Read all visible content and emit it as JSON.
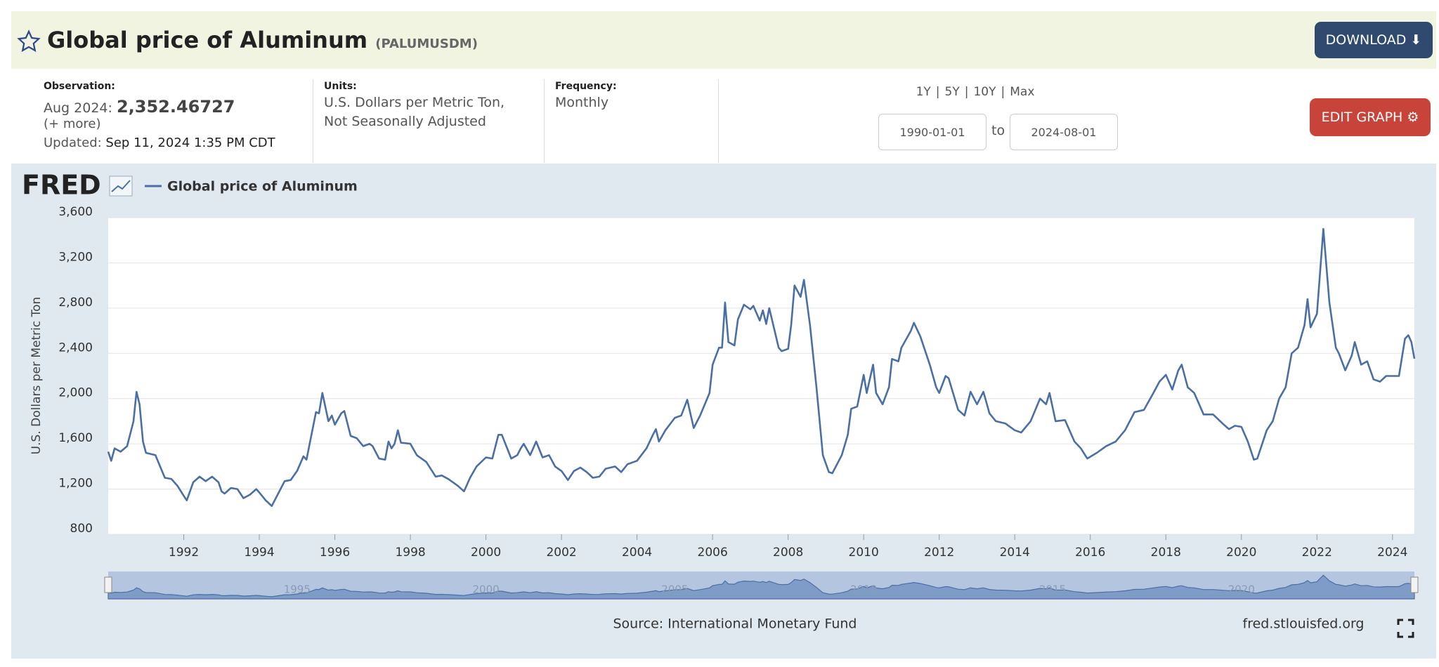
{
  "header": {
    "title": "Global price of Aluminum",
    "series_id": "(PALUMUSDM)",
    "download": "DOWNLOAD"
  },
  "info": {
    "observation_label": "Observation:",
    "observation_date": "Aug 2024:",
    "observation_value": "2,352.46727",
    "more": "(+ more)",
    "updated_label": "Updated:",
    "updated": "Sep 11, 2024 1:35 PM CDT",
    "units_label": "Units:",
    "units": [
      "U.S. Dollars per Metric Ton,",
      "Not Seasonally Adjusted"
    ],
    "frequency_label": "Frequency:",
    "frequency": "Monthly"
  },
  "range": {
    "buttons": [
      "1Y",
      "5Y",
      "10Y",
      "Max"
    ],
    "separator": "|",
    "start": "1990-01-01",
    "to": "to",
    "end": "2024-08-01",
    "edit": "EDIT GRAPH"
  },
  "chart_data": {
    "type": "line",
    "logo": "FRED",
    "ylabel": "U.S. Dollars per Metric Ton",
    "source": "Source: International Monetary Fund",
    "credit": "fred.stlouisfed.org",
    "x": [
      1990.0,
      1990.08,
      1990.17,
      1990.33,
      1990.5,
      1990.67,
      1990.75,
      1990.83,
      1990.92,
      1991.0,
      1991.25,
      1991.5,
      1991.67,
      1991.83,
      1992.0,
      1992.08,
      1992.25,
      1992.42,
      1992.58,
      1992.75,
      1992.92,
      1993.0,
      1993.08,
      1993.25,
      1993.42,
      1993.58,
      1993.75,
      1993.92,
      1994.0,
      1994.17,
      1994.33,
      1994.5,
      1994.67,
      1994.83,
      1995.0,
      1995.17,
      1995.25,
      1995.5,
      1995.58,
      1995.67,
      1995.83,
      1995.92,
      1996.0,
      1996.17,
      1996.25,
      1996.42,
      1996.58,
      1996.75,
      1996.92,
      1997.0,
      1997.17,
      1997.33,
      1997.42,
      1997.5,
      1997.58,
      1997.67,
      1997.75,
      1998.0,
      1998.17,
      1998.42,
      1998.67,
      1998.83,
      1999.0,
      1999.25,
      1999.42,
      1999.58,
      1999.75,
      2000.0,
      2000.17,
      2000.33,
      2000.42,
      2000.67,
      2000.83,
      2000.92,
      2001.0,
      2001.17,
      2001.33,
      2001.5,
      2001.67,
      2001.83,
      2002.0,
      2002.17,
      2002.33,
      2002.5,
      2002.67,
      2002.83,
      2003.0,
      2003.17,
      2003.42,
      2003.58,
      2003.75,
      2004.0,
      2004.25,
      2004.42,
      2004.5,
      2004.58,
      2004.75,
      2005.0,
      2005.17,
      2005.33,
      2005.5,
      2005.67,
      2005.92,
      2006.0,
      2006.17,
      2006.25,
      2006.33,
      2006.42,
      2006.58,
      2006.67,
      2006.83,
      2007.0,
      2007.08,
      2007.25,
      2007.33,
      2007.42,
      2007.5,
      2007.75,
      2007.83,
      2008.0,
      2008.08,
      2008.17,
      2008.25,
      2008.33,
      2008.42,
      2008.58,
      2008.75,
      2008.92,
      2009.08,
      2009.17,
      2009.42,
      2009.58,
      2009.67,
      2009.83,
      2010.0,
      2010.08,
      2010.25,
      2010.33,
      2010.5,
      2010.67,
      2010.75,
      2010.92,
      2011.0,
      2011.25,
      2011.33,
      2011.5,
      2011.75,
      2011.92,
      2012.0,
      2012.17,
      2012.25,
      2012.5,
      2012.67,
      2012.83,
      2013.0,
      2013.17,
      2013.33,
      2013.5,
      2013.75,
      2014.0,
      2014.17,
      2014.42,
      2014.67,
      2014.83,
      2014.92,
      2015.08,
      2015.33,
      2015.58,
      2015.75,
      2015.92,
      2016.17,
      2016.42,
      2016.67,
      2016.92,
      2017.17,
      2017.42,
      2017.67,
      2017.83,
      2018.0,
      2018.17,
      2018.33,
      2018.42,
      2018.58,
      2018.75,
      2019.0,
      2019.25,
      2019.5,
      2019.67,
      2019.83,
      2020.0,
      2020.17,
      2020.33,
      2020.42,
      2020.67,
      2020.83,
      2021.0,
      2021.17,
      2021.33,
      2021.5,
      2021.67,
      2021.75,
      2021.83,
      2022.0,
      2022.17,
      2022.33,
      2022.5,
      2022.58,
      2022.75,
      2022.92,
      2023.0,
      2023.17,
      2023.33,
      2023.5,
      2023.67,
      2023.83,
      2024.0,
      2024.17,
      2024.33,
      2024.42,
      2024.5,
      2024.58
    ],
    "series": [
      {
        "name": "Global price of Aluminum",
        "color": "#4a6fa5",
        "values": [
          1530,
          1450,
          1560,
          1530,
          1580,
          1800,
          2060,
          1950,
          1620,
          1520,
          1500,
          1300,
          1290,
          1230,
          1140,
          1100,
          1260,
          1310,
          1270,
          1310,
          1260,
          1180,
          1160,
          1210,
          1200,
          1120,
          1150,
          1200,
          1170,
          1100,
          1050,
          1160,
          1270,
          1280,
          1360,
          1490,
          1460,
          1880,
          1870,
          2050,
          1800,
          1850,
          1770,
          1870,
          1890,
          1670,
          1650,
          1580,
          1600,
          1580,
          1470,
          1460,
          1620,
          1560,
          1600,
          1720,
          1610,
          1600,
          1500,
          1440,
          1310,
          1320,
          1290,
          1230,
          1180,
          1300,
          1400,
          1480,
          1470,
          1680,
          1680,
          1470,
          1500,
          1560,
          1600,
          1500,
          1620,
          1480,
          1500,
          1400,
          1360,
          1280,
          1360,
          1390,
          1350,
          1300,
          1310,
          1380,
          1400,
          1350,
          1420,
          1450,
          1560,
          1680,
          1730,
          1620,
          1720,
          1830,
          1850,
          1990,
          1740,
          1850,
          2050,
          2300,
          2450,
          2450,
          2850,
          2500,
          2470,
          2700,
          2830,
          2790,
          2820,
          2690,
          2780,
          2660,
          2800,
          2450,
          2420,
          2440,
          2650,
          3000,
          2950,
          2900,
          3050,
          2650,
          2100,
          1500,
          1350,
          1340,
          1500,
          1680,
          1910,
          1930,
          2210,
          2050,
          2300,
          2050,
          1950,
          2100,
          2350,
          2330,
          2450,
          2600,
          2670,
          2550,
          2300,
          2100,
          2050,
          2200,
          2180,
          1900,
          1850,
          2060,
          1950,
          2060,
          1870,
          1800,
          1780,
          1720,
          1700,
          1800,
          2000,
          1950,
          2050,
          1800,
          1810,
          1620,
          1560,
          1470,
          1520,
          1580,
          1620,
          1720,
          1880,
          1900,
          2050,
          2150,
          2210,
          2080,
          2250,
          2300,
          2100,
          2050,
          1860,
          1860,
          1780,
          1730,
          1760,
          1750,
          1620,
          1460,
          1470,
          1720,
          1800,
          2000,
          2100,
          2400,
          2450,
          2650,
          2880,
          2630,
          2750,
          3500,
          2850,
          2450,
          2400,
          2250,
          2380,
          2500,
          2300,
          2330,
          2170,
          2150,
          2200,
          2200,
          2200,
          2530,
          2560,
          2500,
          2352.47
        ]
      }
    ],
    "xlim": [
      1990,
      2024.58
    ],
    "ylim": [
      800,
      3600
    ],
    "xticks": [
      1992,
      1994,
      1996,
      1998,
      2000,
      2002,
      2004,
      2006,
      2008,
      2010,
      2012,
      2014,
      2016,
      2018,
      2020,
      2022,
      2024
    ],
    "yticks": [
      800,
      {
        "value": 1200,
        "label": "1,200"
      },
      {
        "value": 1600,
        "label": "1,600"
      },
      {
        "value": 2000,
        "label": "2,000"
      },
      {
        "value": 2400,
        "label": "2,400"
      },
      {
        "value": 2800,
        "label": "2,800"
      },
      {
        "value": 3200,
        "label": "3,200"
      },
      {
        "value": 3600,
        "label": "3,600"
      }
    ],
    "grid": true,
    "navigator_ticks": [
      1995,
      2000,
      2005,
      2010,
      2015,
      2020
    ]
  }
}
